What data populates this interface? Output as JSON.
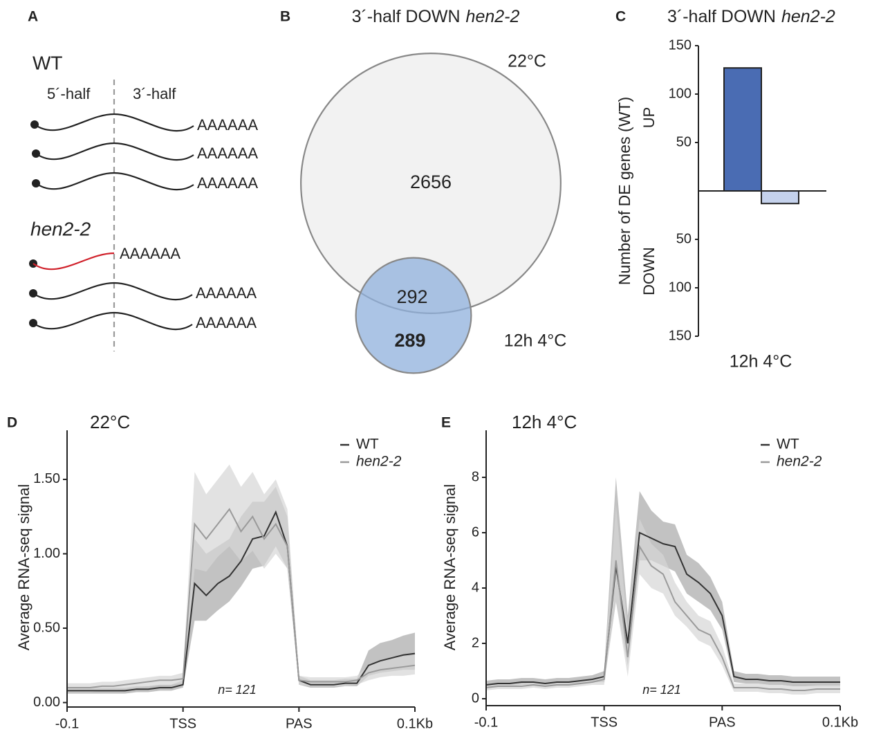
{
  "diagram": {
    "panel": "A",
    "halves": [
      "5´-half",
      "3´-half"
    ],
    "groups": [
      {
        "label": "WT",
        "tails": [
          "AAAAAA",
          "AAAAAA",
          "AAAAAA"
        ]
      },
      {
        "label": "hen2-2",
        "tails": [
          "AAAAAA",
          "AAAAAA",
          "AAAAAA"
        ]
      }
    ]
  },
  "chart_data": [
    {
      "type": "venn",
      "panel": "B",
      "title": "3´-half DOWN",
      "title_genotype": "hen2-2",
      "sets": [
        {
          "name": "22°C",
          "only": 2656,
          "color": "#f2f2f2"
        },
        {
          "name": "12h 4°C",
          "only": 289,
          "color": "#8fb0dc"
        }
      ],
      "overlap": 292
    },
    {
      "type": "bar",
      "panel": "C",
      "title": "3´-half DOWN",
      "title_genotype": "hen2-2",
      "categories": [
        "12h 4°C"
      ],
      "ylabel": "Number of DE genes (WT)",
      "series": [
        {
          "name": "UP",
          "color": "#4a6cb3",
          "values": [
            127
          ]
        },
        {
          "name": "DOWN",
          "color": "#c5d2ec",
          "values": [
            -13
          ]
        }
      ],
      "ylim": [
        -150,
        150
      ],
      "yticks": [
        150,
        100,
        50,
        {
          "value": -50,
          "label": "50"
        },
        {
          "value": -100,
          "label": "100"
        },
        {
          "value": -150,
          "label": "150"
        }
      ]
    },
    {
      "type": "line",
      "panel": "D",
      "title": "22°C",
      "ylabel": "Average RNA-seq signal",
      "annotation": "n= 121",
      "legend": "upper right",
      "x": [
        0,
        10,
        20,
        30,
        40,
        50,
        60,
        70,
        80,
        90,
        100,
        110,
        120,
        130,
        140,
        150,
        160,
        170,
        180,
        190,
        200,
        210,
        220,
        230,
        240,
        250,
        260,
        270,
        280,
        290,
        300
      ],
      "xlim": [
        0,
        300
      ],
      "xticks": [
        {
          "value": 0,
          "label": "-0.1"
        },
        {
          "value": 100,
          "label": "TSS"
        },
        {
          "value": 200,
          "label": "PAS"
        },
        {
          "value": 300,
          "label": "0.1Kb"
        }
      ],
      "ylim": [
        -0.03,
        1.83
      ],
      "yticks": [
        {
          "value": 0,
          "label": "0.00"
        },
        {
          "value": 0.5,
          "label": "0.50"
        },
        {
          "value": 1,
          "label": "1.00"
        },
        {
          "value": 1.5,
          "label": "1.50"
        }
      ],
      "series": [
        {
          "name": "WT",
          "color": "#333333",
          "band_color": "#a8a8a8",
          "values": [
            0.08,
            0.08,
            0.08,
            0.08,
            0.08,
            0.08,
            0.09,
            0.09,
            0.1,
            0.1,
            0.12,
            0.8,
            0.72,
            0.8,
            0.85,
            0.95,
            1.1,
            1.12,
            1.28,
            1.05,
            0.15,
            0.12,
            0.12,
            0.12,
            0.13,
            0.13,
            0.25,
            0.28,
            0.3,
            0.32,
            0.33
          ],
          "lower": [
            0.06,
            0.06,
            0.06,
            0.06,
            0.06,
            0.06,
            0.07,
            0.07,
            0.08,
            0.08,
            0.1,
            0.55,
            0.55,
            0.62,
            0.68,
            0.78,
            0.9,
            0.92,
            1.05,
            0.9,
            0.12,
            0.1,
            0.1,
            0.1,
            0.11,
            0.11,
            0.18,
            0.2,
            0.21,
            0.22,
            0.22
          ],
          "upper": [
            0.1,
            0.1,
            0.1,
            0.1,
            0.1,
            0.1,
            0.11,
            0.11,
            0.12,
            0.12,
            0.15,
            1.1,
            1.0,
            1.05,
            1.1,
            1.25,
            1.35,
            1.35,
            1.45,
            1.25,
            0.18,
            0.15,
            0.15,
            0.15,
            0.16,
            0.16,
            0.35,
            0.4,
            0.42,
            0.45,
            0.47
          ]
        },
        {
          "name": "hen2-2",
          "color": "#9a9a9a",
          "band_color": "#d6d6d6",
          "values": [
            0.1,
            0.1,
            0.1,
            0.11,
            0.11,
            0.12,
            0.13,
            0.14,
            0.15,
            0.15,
            0.16,
            1.2,
            1.1,
            1.2,
            1.3,
            1.15,
            1.25,
            1.1,
            1.2,
            1.05,
            0.15,
            0.14,
            0.14,
            0.14,
            0.14,
            0.15,
            0.2,
            0.22,
            0.23,
            0.24,
            0.25
          ],
          "lower": [
            0.07,
            0.07,
            0.07,
            0.08,
            0.08,
            0.09,
            0.1,
            0.11,
            0.12,
            0.12,
            0.13,
            0.9,
            0.88,
            0.98,
            1.05,
            0.95,
            1.02,
            0.9,
            1.0,
            0.9,
            0.12,
            0.11,
            0.11,
            0.11,
            0.11,
            0.12,
            0.15,
            0.17,
            0.18,
            0.18,
            0.19
          ],
          "upper": [
            0.13,
            0.13,
            0.13,
            0.14,
            0.14,
            0.15,
            0.16,
            0.17,
            0.18,
            0.18,
            0.2,
            1.55,
            1.4,
            1.5,
            1.6,
            1.45,
            1.55,
            1.4,
            1.5,
            1.3,
            0.18,
            0.17,
            0.17,
            0.17,
            0.17,
            0.18,
            0.25,
            0.28,
            0.3,
            0.31,
            0.32
          ]
        }
      ]
    },
    {
      "type": "line",
      "panel": "E",
      "title": "12h 4°C",
      "ylabel": "Average RNA-seq signal",
      "annotation": "n= 121",
      "legend": "upper right",
      "x": [
        0,
        10,
        20,
        30,
        40,
        50,
        60,
        70,
        80,
        90,
        100,
        110,
        120,
        130,
        140,
        150,
        160,
        170,
        180,
        190,
        200,
        210,
        220,
        230,
        240,
        250,
        260,
        270,
        280,
        290,
        300
      ],
      "xlim": [
        0,
        300
      ],
      "xticks": [
        {
          "value": 0,
          "label": "-0.1"
        },
        {
          "value": 100,
          "label": "TSS"
        },
        {
          "value": 200,
          "label": "PAS"
        },
        {
          "value": 300,
          "label": "0.1Kb"
        }
      ],
      "ylim": [
        -0.25,
        9.7
      ],
      "yticks": [
        0,
        2,
        4,
        6,
        8
      ],
      "series": [
        {
          "name": "WT",
          "color": "#333333",
          "band_color": "#a8a8a8",
          "values": [
            0.5,
            0.55,
            0.55,
            0.6,
            0.6,
            0.55,
            0.6,
            0.6,
            0.65,
            0.7,
            0.8,
            4.8,
            2.0,
            6.0,
            5.8,
            5.6,
            5.5,
            4.5,
            4.2,
            3.8,
            3.0,
            0.8,
            0.7,
            0.7,
            0.65,
            0.65,
            0.6,
            0.6,
            0.6,
            0.6,
            0.6
          ],
          "lower": [
            0.4,
            0.45,
            0.45,
            0.5,
            0.5,
            0.45,
            0.5,
            0.5,
            0.55,
            0.6,
            0.6,
            3.5,
            1.2,
            5.0,
            5.0,
            4.8,
            4.6,
            3.8,
            3.5,
            3.2,
            2.5,
            0.6,
            0.55,
            0.55,
            0.5,
            0.5,
            0.45,
            0.45,
            0.45,
            0.45,
            0.45
          ],
          "upper": [
            0.65,
            0.7,
            0.7,
            0.75,
            0.75,
            0.7,
            0.75,
            0.75,
            0.8,
            0.85,
            1.0,
            8.0,
            3.0,
            7.5,
            6.8,
            6.4,
            6.3,
            5.2,
            4.9,
            4.4,
            3.5,
            1.0,
            0.9,
            0.9,
            0.85,
            0.85,
            0.8,
            0.8,
            0.8,
            0.8,
            0.8
          ]
        },
        {
          "name": "hen2-2",
          "color": "#9a9a9a",
          "band_color": "#d6d6d6",
          "values": [
            0.4,
            0.45,
            0.45,
            0.45,
            0.5,
            0.45,
            0.5,
            0.5,
            0.55,
            0.6,
            0.7,
            5.0,
            1.5,
            5.5,
            4.8,
            4.5,
            3.5,
            3.0,
            2.5,
            2.3,
            1.5,
            0.4,
            0.4,
            0.4,
            0.35,
            0.35,
            0.3,
            0.3,
            0.35,
            0.35,
            0.35
          ],
          "lower": [
            0.3,
            0.35,
            0.35,
            0.35,
            0.4,
            0.35,
            0.4,
            0.4,
            0.45,
            0.5,
            0.5,
            3.5,
            0.8,
            4.5,
            4.0,
            3.8,
            3.0,
            2.6,
            2.1,
            1.9,
            1.2,
            0.25,
            0.25,
            0.25,
            0.2,
            0.2,
            0.15,
            0.15,
            0.2,
            0.2,
            0.2
          ],
          "upper": [
            0.5,
            0.55,
            0.55,
            0.55,
            0.6,
            0.55,
            0.6,
            0.6,
            0.65,
            0.7,
            0.9,
            7.0,
            2.5,
            6.5,
            5.6,
            5.2,
            4.2,
            3.5,
            3.0,
            2.8,
            1.9,
            0.55,
            0.55,
            0.55,
            0.5,
            0.5,
            0.45,
            0.45,
            0.5,
            0.5,
            0.5
          ]
        }
      ]
    }
  ]
}
